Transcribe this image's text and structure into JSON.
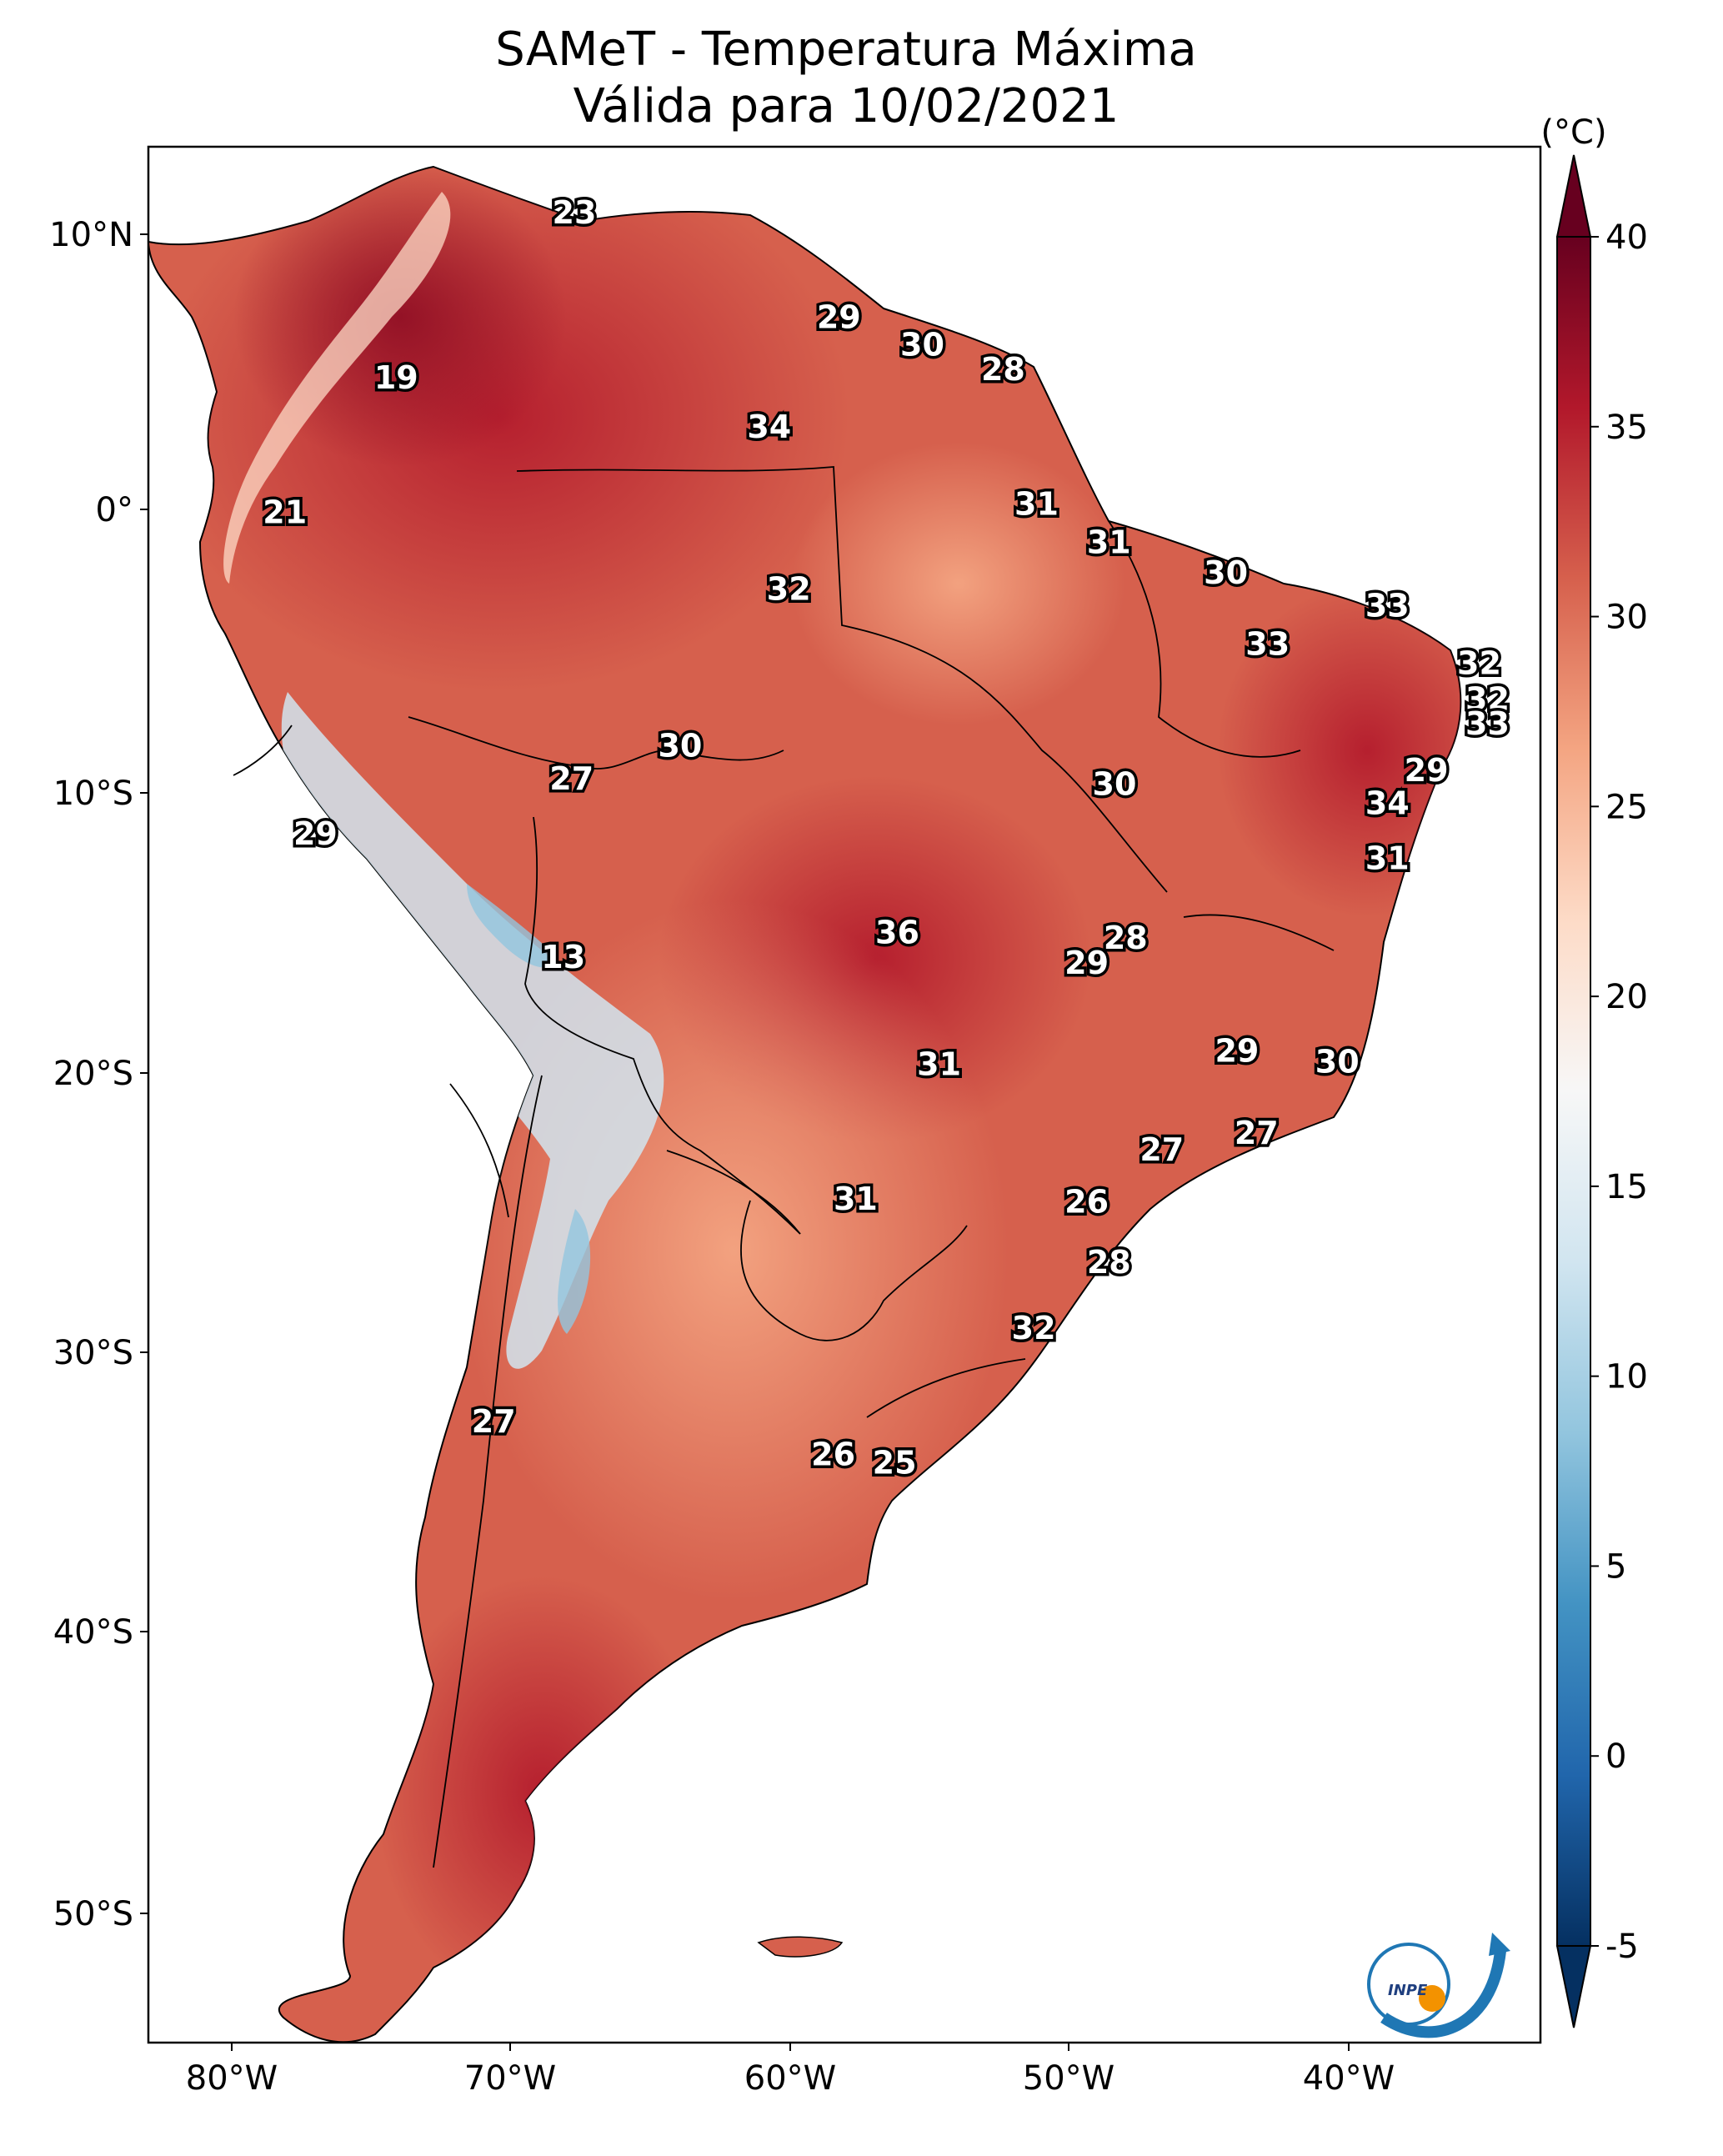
{
  "title": {
    "line1": "SAMeT - Temperatura Máxima",
    "line2": "Válida para 10/02/2021"
  },
  "map": {
    "lat_labels": [
      "10°N",
      "0°",
      "10°S",
      "20°S",
      "30°S",
      "40°S",
      "50°S"
    ],
    "lon_labels": [
      "80°W",
      "70°W",
      "60°W",
      "50°W",
      "40°W"
    ],
    "lon_range": [
      -83,
      -33
    ],
    "lat_range": [
      -56,
      13
    ],
    "ocean_color": "#ffffff",
    "border_color": "#000000"
  },
  "colorbar": {
    "unit": "(°C)",
    "ticks": [
      "40",
      "35",
      "30",
      "25",
      "20",
      "15",
      "10",
      "5",
      "0",
      "-5"
    ],
    "min": -5,
    "max": 40,
    "extend": "both",
    "colors": [
      "#053061",
      "#2166ac",
      "#4393c3",
      "#92c5de",
      "#d1e5f0",
      "#f7f7f7",
      "#fddbc7",
      "#f4a582",
      "#d6604d",
      "#b2182b",
      "#67001f"
    ]
  },
  "station_labels": [
    {
      "value": "23",
      "lon": -67.7,
      "lat": 10.6
    },
    {
      "value": "19",
      "lon": -74.1,
      "lat": 4.6
    },
    {
      "value": "21",
      "lon": -78.1,
      "lat": -0.3
    },
    {
      "value": "34",
      "lon": -60.7,
      "lat": 2.8
    },
    {
      "value": "29",
      "lon": -58.2,
      "lat": 6.8
    },
    {
      "value": "30",
      "lon": -55.2,
      "lat": 5.8
    },
    {
      "value": "28",
      "lon": -52.3,
      "lat": 4.9
    },
    {
      "value": "31",
      "lon": -51.1,
      "lat": 0.0
    },
    {
      "value": "32",
      "lon": -60.0,
      "lat": -3.1
    },
    {
      "value": "31",
      "lon": -48.5,
      "lat": -1.4
    },
    {
      "value": "30",
      "lon": -44.3,
      "lat": -2.5
    },
    {
      "value": "33",
      "lon": -38.5,
      "lat": -3.7
    },
    {
      "value": "33",
      "lon": -42.8,
      "lat": -5.1
    },
    {
      "value": "32",
      "lon": -35.2,
      "lat": -5.8
    },
    {
      "value": "32",
      "lon": -34.9,
      "lat": -7.1
    },
    {
      "value": "33",
      "lon": -34.9,
      "lat": -8.0
    },
    {
      "value": "30",
      "lon": -63.9,
      "lat": -8.8
    },
    {
      "value": "27",
      "lon": -67.8,
      "lat": -10.0
    },
    {
      "value": "30",
      "lon": -48.3,
      "lat": -10.2
    },
    {
      "value": "29",
      "lon": -37.1,
      "lat": -9.7
    },
    {
      "value": "34",
      "lon": -38.5,
      "lat": -10.9
    },
    {
      "value": "29",
      "lon": -77.0,
      "lat": -12.0
    },
    {
      "value": "31",
      "lon": -38.5,
      "lat": -12.9
    },
    {
      "value": "13",
      "lon": -68.1,
      "lat": -16.5
    },
    {
      "value": "36",
      "lon": -56.1,
      "lat": -15.6
    },
    {
      "value": "28",
      "lon": -47.9,
      "lat": -15.8
    },
    {
      "value": "29",
      "lon": -49.3,
      "lat": -16.7
    },
    {
      "value": "31",
      "lon": -54.6,
      "lat": -20.4
    },
    {
      "value": "29",
      "lon": -43.9,
      "lat": -19.9
    },
    {
      "value": "30",
      "lon": -40.3,
      "lat": -20.3
    },
    {
      "value": "27",
      "lon": -46.6,
      "lat": -23.5
    },
    {
      "value": "27",
      "lon": -43.2,
      "lat": -22.9
    },
    {
      "value": "31",
      "lon": -57.6,
      "lat": -25.3
    },
    {
      "value": "26",
      "lon": -49.3,
      "lat": -25.4
    },
    {
      "value": "28",
      "lon": -48.5,
      "lat": -27.6
    },
    {
      "value": "32",
      "lon": -51.2,
      "lat": -30.0
    },
    {
      "value": "27",
      "lon": -70.6,
      "lat": -33.4
    },
    {
      "value": "26",
      "lon": -58.4,
      "lat": -34.6
    },
    {
      "value": "25",
      "lon": -56.2,
      "lat": -34.9
    }
  ],
  "logo": {
    "text": "INPE"
  }
}
